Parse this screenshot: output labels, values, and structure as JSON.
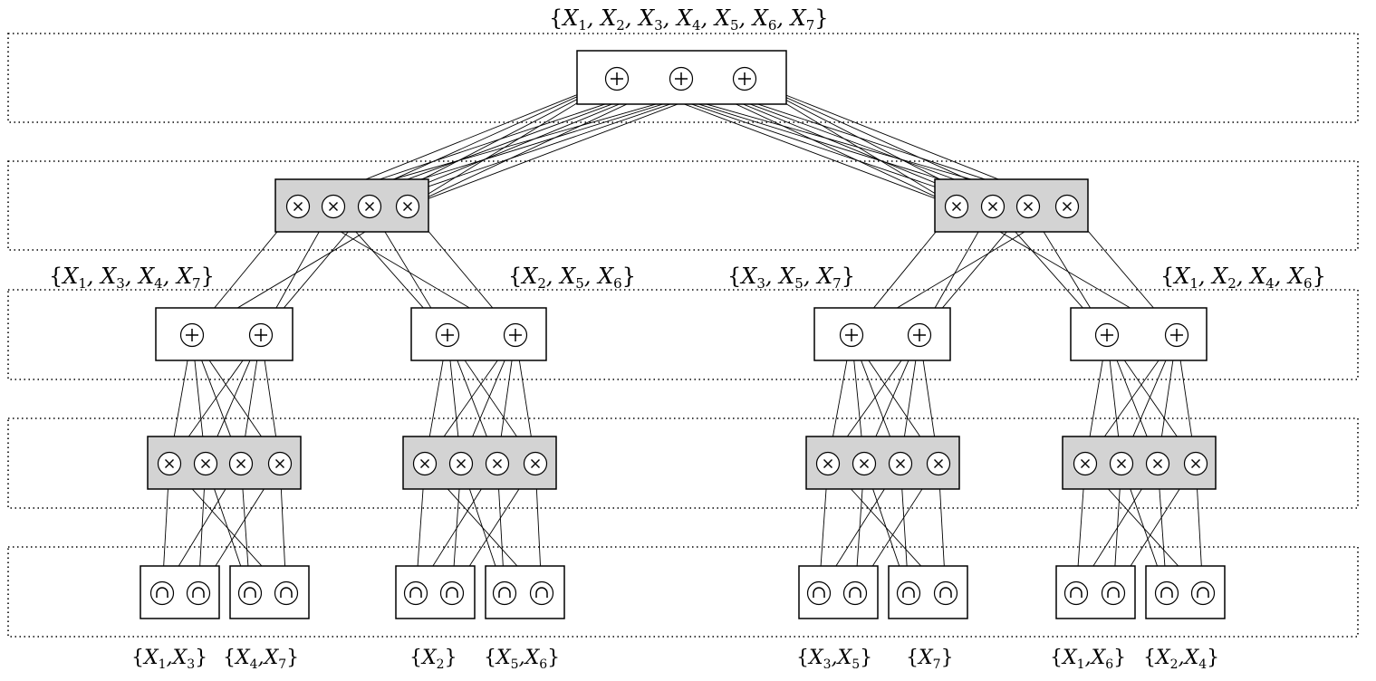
{
  "labels": {
    "root_scope": "{X1, X2, X3, X4, X5, X6, X7}",
    "scope_a": "{X1, X3, X4, X7}",
    "scope_b": "{X2, X5, X6}",
    "scope_c": "{X3, X5, X7}",
    "scope_d": "{X1, X2, X4, X6}",
    "leaf_a1": "{X1,X3}",
    "leaf_a2": "{X4,X7}",
    "leaf_b1": "{X2}",
    "leaf_b2": "{X5,X6}",
    "leaf_c1": "{X3,X5}",
    "leaf_c2": "{X7}",
    "leaf_d1": "{X1,X6}",
    "leaf_d2": "{X2,X4}"
  },
  "node_symbols": {
    "sum": "+",
    "product": "×",
    "leaf": "∩"
  },
  "colors": {
    "stroke": "#000000",
    "product_fill": "#d3d3d3",
    "node_fill": "#ffffff"
  }
}
